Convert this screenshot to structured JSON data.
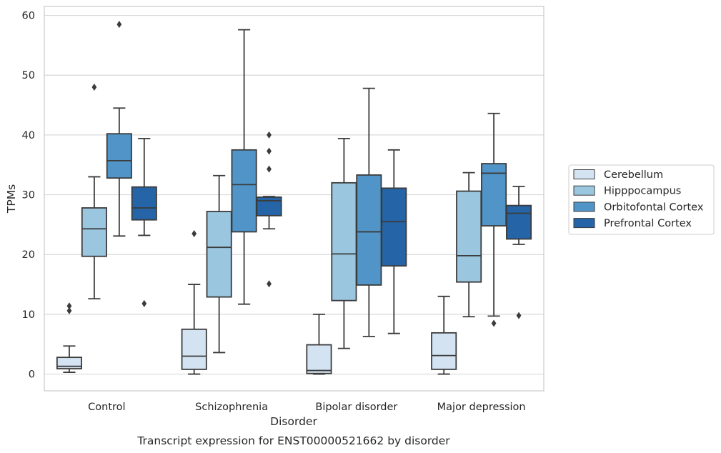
{
  "caption": "Transcript expression for ENST00000521662 by disorder",
  "chart_data": {
    "type": "box",
    "xlabel": "Disorder",
    "ylabel": "TPMs",
    "ylim": [
      -2.8,
      61.5
    ],
    "yticks": [
      0,
      10,
      20,
      30,
      40,
      50,
      60
    ],
    "grid": true,
    "legend_position": "right",
    "categories": [
      "Control",
      "Schizophrenia",
      "Bipolar disorder",
      "Major depression"
    ],
    "series": [
      {
        "name": "Cerebellum",
        "color": "#d4e3f2",
        "boxes": [
          {
            "whislo": 0.3,
            "q1": 0.9,
            "med": 1.3,
            "q3": 2.8,
            "whishi": 4.7,
            "fliers": [
              10.6,
              11.4
            ]
          },
          {
            "whislo": 0.0,
            "q1": 0.8,
            "med": 3.0,
            "q3": 7.5,
            "whishi": 15.0,
            "fliers": [
              23.5
            ]
          },
          {
            "whislo": 0.0,
            "q1": 0.1,
            "med": 0.6,
            "q3": 4.9,
            "whishi": 10.0,
            "fliers": []
          },
          {
            "whislo": 0.0,
            "q1": 0.8,
            "med": 3.1,
            "q3": 6.9,
            "whishi": 13.0,
            "fliers": []
          }
        ]
      },
      {
        "name": "Hipppocampus",
        "color": "#9bc6e0",
        "boxes": [
          {
            "whislo": 12.6,
            "q1": 19.7,
            "med": 24.3,
            "q3": 27.8,
            "whishi": 33.0,
            "fliers": [
              48.0
            ]
          },
          {
            "whislo": 3.6,
            "q1": 12.9,
            "med": 21.2,
            "q3": 27.2,
            "whishi": 33.2,
            "fliers": []
          },
          {
            "whislo": 4.3,
            "q1": 12.3,
            "med": 20.1,
            "q3": 32.0,
            "whishi": 39.4,
            "fliers": []
          },
          {
            "whislo": 9.6,
            "q1": 15.4,
            "med": 19.8,
            "q3": 30.6,
            "whishi": 33.7,
            "fliers": []
          }
        ]
      },
      {
        "name": "Orbitofontal Cortex",
        "color": "#5195c8",
        "boxes": [
          {
            "whislo": 23.1,
            "q1": 32.8,
            "med": 35.7,
            "q3": 40.2,
            "whishi": 44.5,
            "fliers": [
              58.5
            ]
          },
          {
            "whislo": 11.7,
            "q1": 23.8,
            "med": 31.7,
            "q3": 37.5,
            "whishi": 57.6,
            "fliers": []
          },
          {
            "whislo": 6.3,
            "q1": 14.9,
            "med": 23.8,
            "q3": 33.3,
            "whishi": 47.8,
            "fliers": []
          },
          {
            "whislo": 9.7,
            "q1": 24.8,
            "med": 33.6,
            "q3": 35.2,
            "whishi": 43.6,
            "fliers": [
              8.5
            ]
          }
        ]
      },
      {
        "name": "Prefrontal Cortex",
        "color": "#2565a7",
        "boxes": [
          {
            "whislo": 23.2,
            "q1": 25.8,
            "med": 27.8,
            "q3": 31.3,
            "whishi": 39.4,
            "fliers": [
              11.8
            ]
          },
          {
            "whislo": 24.3,
            "q1": 26.5,
            "med": 29.0,
            "q3": 29.6,
            "whishi": 29.7,
            "fliers": [
              40.0,
              37.3,
              34.3,
              15.1
            ]
          },
          {
            "whislo": 6.8,
            "q1": 18.1,
            "med": 25.5,
            "q3": 31.1,
            "whishi": 37.5,
            "fliers": []
          },
          {
            "whislo": 21.7,
            "q1": 22.6,
            "med": 26.9,
            "q3": 28.2,
            "whishi": 31.4,
            "fliers": [
              9.8
            ]
          }
        ]
      }
    ]
  }
}
